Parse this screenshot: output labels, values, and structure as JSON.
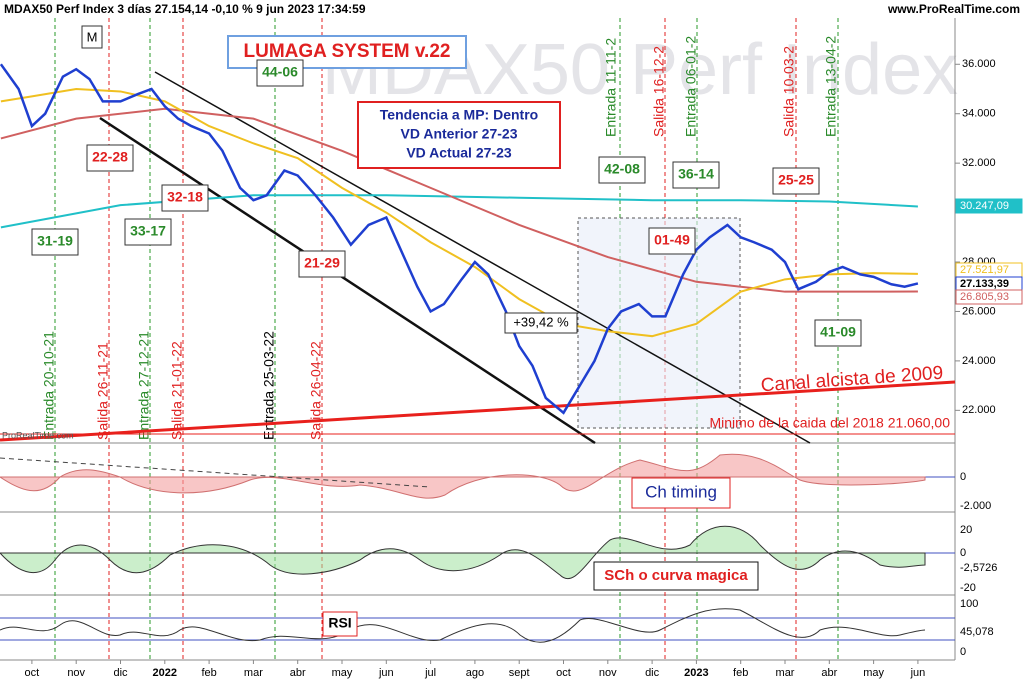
{
  "header": {
    "title": "MDAX50 Perf Index 3 días 27.154,14 -0,10 % 9 jun 2023 17:34:59",
    "site": "www.ProRealTime.com"
  },
  "watermark": "MDAX50 Perf Index",
  "chart_data": {
    "type": "line",
    "xlim": [
      -0.72,
      20.16
    ],
    "xticks": [
      {
        "value": 0,
        "label": "oct"
      },
      {
        "value": 1,
        "label": "nov"
      },
      {
        "value": 2,
        "label": "dic"
      },
      {
        "value": 3,
        "label": "2022"
      },
      {
        "value": 4,
        "label": "feb"
      },
      {
        "value": 5,
        "label": "mar"
      },
      {
        "value": 6,
        "label": "abr"
      },
      {
        "value": 7,
        "label": "may"
      },
      {
        "value": 8,
        "label": "jun"
      },
      {
        "value": 9,
        "label": "jul"
      },
      {
        "value": 10,
        "label": "ago"
      },
      {
        "value": 11,
        "label": "sept"
      },
      {
        "value": 12,
        "label": "oct"
      },
      {
        "value": 13,
        "label": "nov"
      },
      {
        "value": 14,
        "label": "dic"
      },
      {
        "value": 15,
        "label": "2023"
      },
      {
        "value": 16,
        "label": "feb"
      },
      {
        "value": 17,
        "label": "mar"
      },
      {
        "value": 18,
        "label": "abr"
      },
      {
        "value": 19,
        "label": "may"
      },
      {
        "value": 20,
        "label": "jun"
      }
    ],
    "ylim": [
      20800,
      38600
    ],
    "yticks": [
      {
        "value": 22000,
        "label": "22.000"
      },
      {
        "value": 24000,
        "label": "24.000"
      },
      {
        "value": 26000,
        "label": "26.000"
      },
      {
        "value": 28000,
        "label": "28.000"
      },
      {
        "value": 32000,
        "label": "32.000"
      },
      {
        "value": 34000,
        "label": "34.000"
      },
      {
        "value": 36000,
        "label": "36.000"
      }
    ],
    "series": [
      {
        "color": "#1f3fd0",
        "x": [
          -0.7,
          -0.3,
          0,
          0.3,
          0.7,
          1,
          1.3,
          1.6,
          2,
          2.4,
          2.7,
          3,
          3.3,
          3.6,
          4,
          4.3,
          4.7,
          5,
          5.3,
          5.7,
          6,
          6.4,
          6.8,
          7.2,
          7.6,
          8,
          8.3,
          8.7,
          9,
          9.3,
          9.7,
          10,
          10.3,
          10.7,
          11,
          11.3,
          11.6,
          12,
          12.3,
          12.7,
          13,
          13.3,
          13.7,
          14,
          14.3,
          14.7,
          15,
          15.3,
          15.7,
          16,
          16.3,
          16.7,
          17,
          17.3,
          17.7,
          18,
          18.3,
          18.7,
          19,
          19.4,
          19.7,
          20
        ],
        "values": [
          36000,
          35000,
          33500,
          34000,
          35500,
          35800,
          35400,
          34500,
          34500,
          34800,
          35000,
          34300,
          33800,
          33500,
          33200,
          32500,
          31000,
          30500,
          30700,
          31700,
          31500,
          30700,
          29800,
          28700,
          29500,
          29800,
          28600,
          27000,
          26000,
          26300,
          27300,
          28000,
          27500,
          26000,
          24600,
          23800,
          22500,
          21900,
          22800,
          24000,
          25300,
          26000,
          26300,
          25800,
          25800,
          27500,
          28500,
          29000,
          29500,
          29000,
          28800,
          28500,
          28000,
          26900,
          27200,
          27600,
          27800,
          27500,
          27400,
          27100,
          27000,
          27133
        ]
      },
      {
        "color": "#f0c020",
        "x": [
          -0.7,
          0,
          1,
          2,
          3,
          4,
          5,
          6,
          7,
          8,
          9,
          10,
          11,
          12,
          13,
          14,
          15,
          16,
          17,
          18,
          19,
          20
        ],
        "values": [
          34500,
          34700,
          35000,
          34900,
          34500,
          33500,
          32800,
          32200,
          31000,
          30000,
          28800,
          27800,
          26500,
          25500,
          25200,
          25000,
          25500,
          26800,
          27300,
          27500,
          27550,
          27522
        ]
      },
      {
        "color": "#d06060",
        "x": [
          -0.7,
          1,
          3,
          5,
          7,
          9,
          11,
          13,
          15,
          17,
          19,
          20
        ],
        "values": [
          33000,
          33800,
          34200,
          33800,
          32500,
          31000,
          29500,
          28200,
          27200,
          26800,
          26800,
          26806
        ]
      },
      {
        "color": "#20c0c8",
        "x": [
          -0.7,
          2,
          5,
          8,
          11,
          14,
          16,
          18,
          20
        ],
        "values": [
          29400,
          30300,
          30700,
          30700,
          30600,
          30500,
          30500,
          30450,
          30247
        ]
      }
    ]
  },
  "last_labels": [
    "30.247,09",
    "27.521,97",
    "27.133,39",
    "26.805,93"
  ],
  "annotations": {
    "system": "LUMAGA SYSTEM v.22",
    "trend": [
      "Tendencia a MP: Dentro",
      "VD Anterior 27-23",
      "VD Actual 27-23"
    ],
    "gain": "+39,42 %",
    "channel": "Canal alcista de 2009",
    "minimum": "Minimo de la caida del 2018  21.060,00",
    "marker": "M",
    "logo": "ProRealTime.com"
  },
  "scores": [
    "44-06",
    "22-28",
    "32-18",
    "31-19",
    "33-17",
    "21-29",
    "42-08",
    "36-14",
    "25-25",
    "01-49",
    "41-09"
  ],
  "signals": [
    "Entrada 20-10-21",
    "Salida 26-11-21",
    "Entrada 27-12-21",
    "Salida 21-01-22",
    "Entrada 25-03-22",
    "Salida 26-04-22",
    "Entrada 11-11-2",
    "Salida 16-12-2",
    "Entrada 06-01-2",
    "Salida 10-03-2",
    "Entrada 13-04-2"
  ],
  "panels": [
    {
      "label": "Ch timing",
      "ticks": [
        "0",
        "-2.000"
      ]
    },
    {
      "label": "SCh o curva magica",
      "ticks": [
        "20",
        "0",
        "-2,5726",
        "-20"
      ]
    },
    {
      "label": "RSI",
      "ticks": [
        "100",
        "45,078",
        "0"
      ]
    }
  ]
}
